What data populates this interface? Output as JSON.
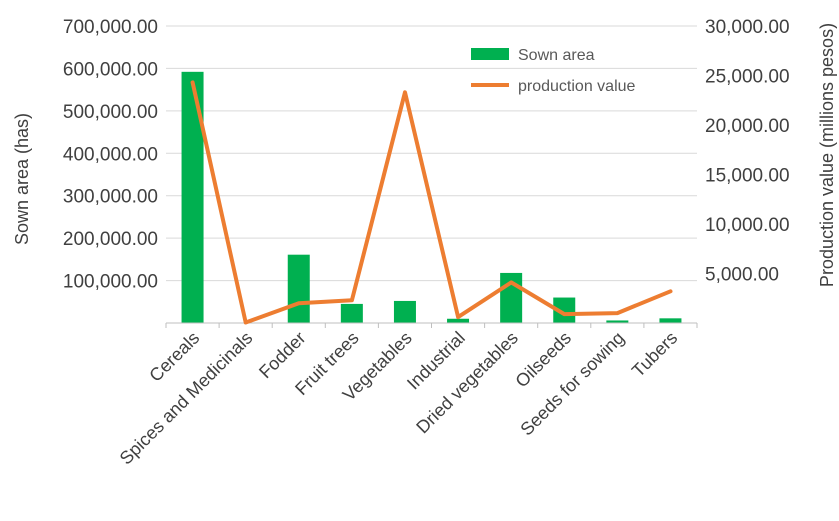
{
  "chart_data": {
    "type": "bar+line",
    "categories": [
      "Cereals",
      "Spices and Medicinals",
      "Fodder",
      "Fruit trees",
      "Vegetables",
      "Industrial",
      "Dried vegetables",
      "Oilseeds",
      "Seeds for sowing",
      "Tubers"
    ],
    "series": [
      {
        "name": "Sown area",
        "type": "bar",
        "axis": "left",
        "color": "#00b050",
        "values": [
          592000,
          1000,
          161000,
          45000,
          52000,
          10000,
          118000,
          60000,
          6000,
          11000
        ]
      },
      {
        "name": "production value",
        "type": "line",
        "axis": "right",
        "color": "#ed7d31",
        "values": [
          24300,
          50,
          2000,
          2300,
          23300,
          600,
          4100,
          900,
          1000,
          3200
        ]
      }
    ],
    "ylabel_left": "Sown area (has)",
    "ylabel_right": "Production value (millions pesos)",
    "ylim_left": [
      0,
      700000
    ],
    "ylim_right": [
      0,
      30000
    ],
    "yticks_left": [
      "",
      "100,000.00",
      "200,000.00",
      "300,000.00",
      "400,000.00",
      "500,000.00",
      "600,000.00",
      "700,000.00"
    ],
    "yticks_right": [
      "",
      "5,000.00",
      "10,000.00",
      "15,000.00",
      "20,000.00",
      "25,000.00",
      "30,000.00"
    ],
    "grid": true,
    "legend_position": "top-right"
  }
}
